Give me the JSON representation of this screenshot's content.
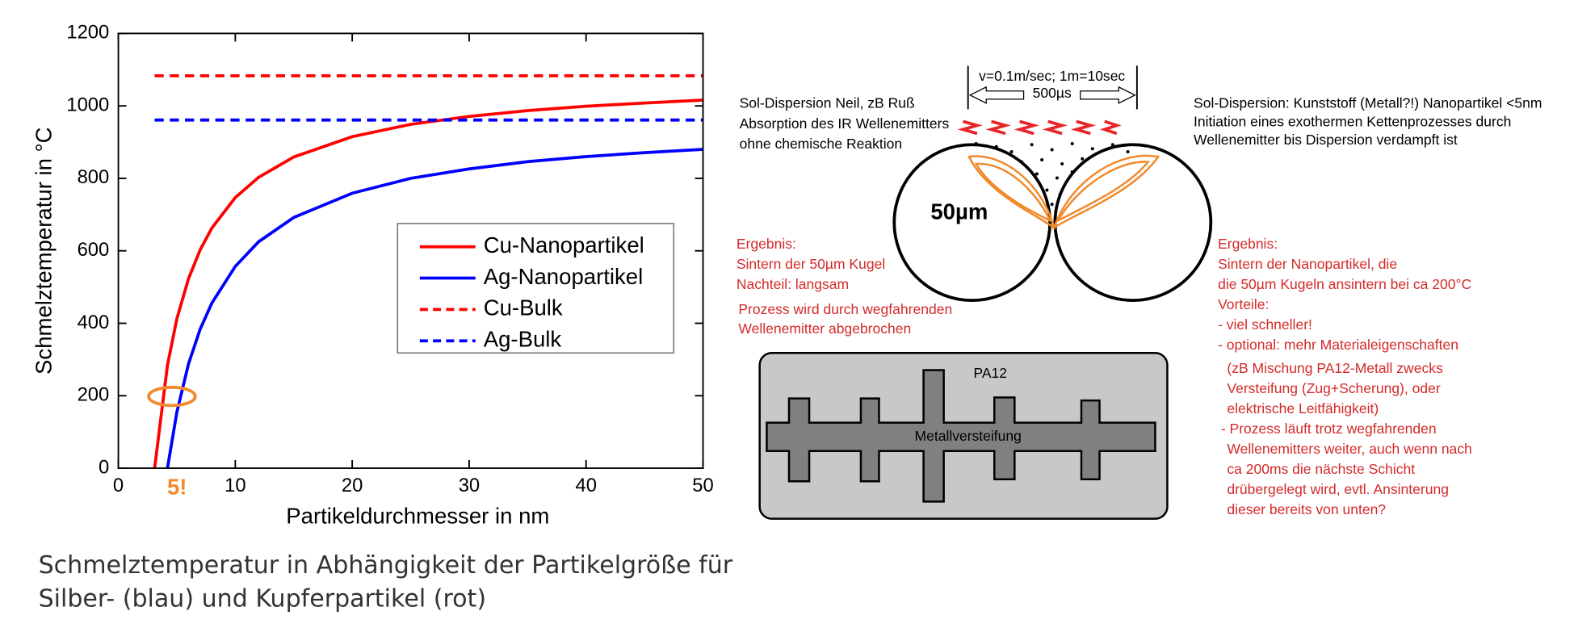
{
  "chart_data": {
    "type": "line",
    "x": [
      3.1,
      4.2,
      5,
      6,
      7,
      8,
      10,
      12,
      15,
      20,
      25,
      30,
      35,
      40,
      45,
      50
    ],
    "series": [
      {
        "name": "Cu-Nanopartikel",
        "color": "#ff0000",
        "style": "solid",
        "values": [
          0,
          284,
          412,
          523,
          603,
          663,
          747,
          803,
          859,
          915,
          949,
          971,
          987,
          999,
          1008,
          1016
        ]
      },
      {
        "name": "Ag-Nanopartikel",
        "color": "#0000ff",
        "style": "solid",
        "values": [
          null,
          0,
          154,
          288,
          384,
          456,
          557,
          625,
          692,
          759,
          800,
          826,
          846,
          860,
          871,
          880
        ]
      },
      {
        "name": "Cu-Bulk",
        "color": "#ff0000",
        "style": "dashed",
        "values": [
          1083,
          1083,
          1083,
          1083,
          1083,
          1083,
          1083,
          1083,
          1083,
          1083,
          1083,
          1083,
          1083,
          1083,
          1083,
          1083
        ]
      },
      {
        "name": "Ag-Bulk",
        "color": "#0000ff",
        "style": "dashed",
        "values": [
          961,
          961,
          961,
          961,
          961,
          961,
          961,
          961,
          961,
          961,
          961,
          961,
          961,
          961,
          961,
          961
        ]
      }
    ],
    "xlabel": "Partikeldurchmesser in nm",
    "ylabel": "Schmelztemperatur in °C",
    "xlim": [
      0,
      50
    ],
    "ylim": [
      0,
      1200
    ],
    "xticks": [
      0,
      10,
      20,
      30,
      40,
      50
    ],
    "yticks": [
      0,
      200,
      400,
      600,
      800,
      1000,
      1200
    ],
    "legend": "center-right",
    "annotations": [
      {
        "text": "5!",
        "color": "#f08a2c"
      }
    ]
  },
  "caption": [
    "Schmelztemperatur in Abhängigkeit der Partikelgröße für",
    "Silber- (blau) und Kupferpartikel (rot)"
  ],
  "diagram": {
    "speed": "v=0.1m/sec; 1m=10sec",
    "time": "500µs",
    "left_note": [
      "Sol-Dispersion Neil, zB Ruß",
      "Absorption des IR Wellenemitters",
      "ohne chemische Reaktion"
    ],
    "right_note": [
      "Sol-Dispersion: Kunststoff (Metall?!) Nanopartikel <5nm",
      "Initiation eines exothermen Kettenprozesses durch",
      "Wellenemitter bis Dispersion verdampft ist"
    ],
    "scale_label": "50µm",
    "result_left": [
      "Ergebnis:",
      "Sintern der 50µm Kugel",
      "Nachteil: langsam",
      "Prozess wird durch wegfahrenden",
      "Wellenemitter abgebrochen"
    ],
    "result_right": [
      "Ergebnis:",
      "Sintern der Nanopartikel, die",
      "die 50µm Kugeln ansintern bei ca 200°C",
      "Vorteile:",
      "- viel schneller!",
      "- optional: mehr Materialeigenschaften",
      "(zB Mischung PA12-Metall zwecks",
      "Versteifung (Zug+Scherung), oder",
      "elektrische Leitfähigkeit)",
      "- Prozess läuft trotz wegfahrenden",
      "Wellenemitters weiter, auch wenn nach",
      "ca 200ms die nächste Schicht",
      "drübergelegt wird, evtl. Ansinterung",
      "dieser bereits von unten?"
    ],
    "box_label": "PA12",
    "insert_label": "Metallversteifung"
  }
}
